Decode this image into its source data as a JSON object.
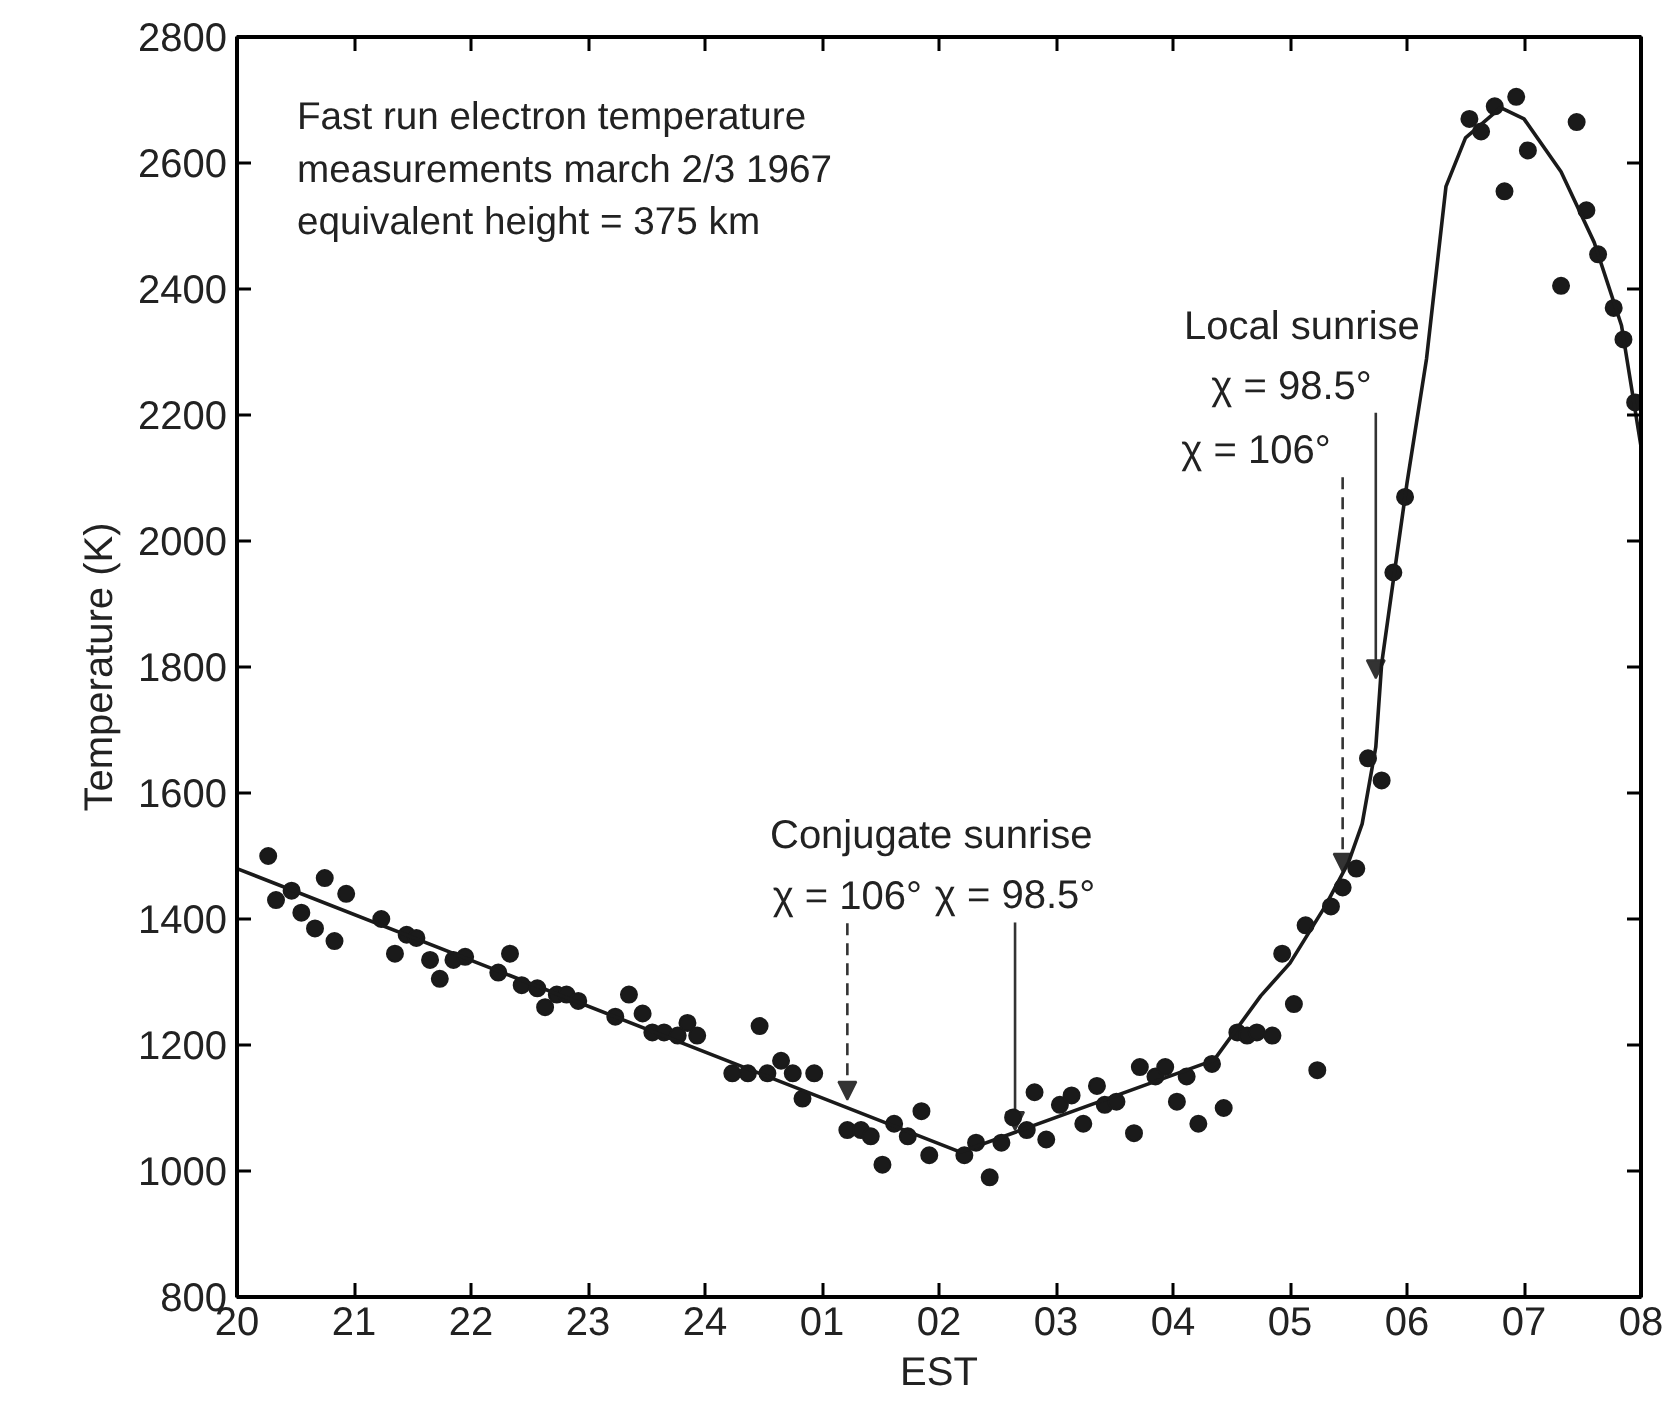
{
  "chart_data": {
    "type": "scatter",
    "title": "Fast run electron temperature\nmeasurements march 2/3 1967\nequivalent height = 375 km",
    "xlabel": "EST",
    "ylabel": "Temperature (K)",
    "xlim": [
      "1967-03-02T20:00",
      "1967-03-03T08:00"
    ],
    "ylim": [
      800,
      2800
    ],
    "xticks": [
      {
        "value": "1967-03-02T20:00",
        "label": "20"
      },
      {
        "value": "1967-03-02T21:00",
        "label": "21"
      },
      {
        "value": "1967-03-02T22:00",
        "label": "22"
      },
      {
        "value": "1967-03-02T23:00",
        "label": "23"
      },
      {
        "value": "1967-03-03T00:00",
        "label": "24"
      },
      {
        "value": "1967-03-03T01:00",
        "label": "01"
      },
      {
        "value": "1967-03-03T02:00",
        "label": "02"
      },
      {
        "value": "1967-03-03T03:00",
        "label": "03"
      },
      {
        "value": "1967-03-03T04:00",
        "label": "04"
      },
      {
        "value": "1967-03-03T05:00",
        "label": "05"
      },
      {
        "value": "1967-03-03T06:00",
        "label": "06"
      },
      {
        "value": "1967-03-03T07:00",
        "label": "07"
      },
      {
        "value": "1967-03-03T08:00",
        "label": "08"
      }
    ],
    "yticks": [
      800,
      1000,
      1200,
      1400,
      1600,
      1800,
      2000,
      2200,
      2400,
      2600,
      2800
    ],
    "series": [
      {
        "marker": "circle",
        "color": "#1a1a1a",
        "x": [
          "1967-03-02T20:16",
          "1967-03-02T20:20",
          "1967-03-02T20:28",
          "1967-03-02T20:33",
          "1967-03-02T20:40",
          "1967-03-02T20:45",
          "1967-03-02T20:50",
          "1967-03-02T20:56",
          "1967-03-02T21:14",
          "1967-03-02T21:21",
          "1967-03-02T21:27",
          "1967-03-02T21:32",
          "1967-03-02T21:39",
          "1967-03-02T21:44",
          "1967-03-02T21:51",
          "1967-03-02T21:57",
          "1967-03-02T22:14",
          "1967-03-02T22:20",
          "1967-03-02T22:26",
          "1967-03-02T22:34",
          "1967-03-02T22:38",
          "1967-03-02T22:44",
          "1967-03-02T22:49",
          "1967-03-02T22:55",
          "1967-03-02T23:14",
          "1967-03-02T23:21",
          "1967-03-02T23:28",
          "1967-03-02T23:33",
          "1967-03-02T23:39",
          "1967-03-02T23:46",
          "1967-03-02T23:51",
          "1967-03-02T23:56",
          "1967-03-03T00:14",
          "1967-03-03T00:22",
          "1967-03-03T00:28",
          "1967-03-03T00:32",
          "1967-03-03T00:39",
          "1967-03-03T00:45",
          "1967-03-03T00:50",
          "1967-03-03T00:56",
          "1967-03-03T01:13",
          "1967-03-03T01:20",
          "1967-03-03T01:25",
          "1967-03-03T01:31",
          "1967-03-03T01:37",
          "1967-03-03T01:44",
          "1967-03-03T01:51",
          "1967-03-03T01:55",
          "1967-03-03T02:13",
          "1967-03-03T02:19",
          "1967-03-03T02:26",
          "1967-03-03T02:32",
          "1967-03-03T02:38",
          "1967-03-03T02:45",
          "1967-03-03T02:49",
          "1967-03-03T02:55",
          "1967-03-03T03:02",
          "1967-03-03T03:08",
          "1967-03-03T03:14",
          "1967-03-03T03:21",
          "1967-03-03T03:25",
          "1967-03-03T03:31",
          "1967-03-03T03:40",
          "1967-03-03T03:43",
          "1967-03-03T03:51",
          "1967-03-03T03:56",
          "1967-03-03T04:02",
          "1967-03-03T04:07",
          "1967-03-03T04:13",
          "1967-03-03T04:20",
          "1967-03-03T04:26",
          "1967-03-03T04:33",
          "1967-03-03T04:38",
          "1967-03-03T04:43",
          "1967-03-03T04:51",
          "1967-03-03T04:56",
          "1967-03-03T05:02",
          "1967-03-03T05:08",
          "1967-03-03T05:14",
          "1967-03-03T05:21",
          "1967-03-03T05:27",
          "1967-03-03T05:34",
          "1967-03-03T05:40",
          "1967-03-03T05:47",
          "1967-03-03T05:53",
          "1967-03-03T05:59",
          "1967-03-03T06:32",
          "1967-03-03T06:38",
          "1967-03-03T06:45",
          "1967-03-03T06:50",
          "1967-03-03T06:56",
          "1967-03-03T07:02",
          "1967-03-03T07:19",
          "1967-03-03T07:27",
          "1967-03-03T07:32",
          "1967-03-03T07:38",
          "1967-03-03T07:46",
          "1967-03-03T07:51",
          "1967-03-03T07:57"
        ],
        "values": [
          1500,
          1430,
          1445,
          1410,
          1385,
          1465,
          1365,
          1440,
          1400,
          1345,
          1375,
          1370,
          1335,
          1305,
          1335,
          1340,
          1315,
          1345,
          1295,
          1290,
          1260,
          1280,
          1280,
          1270,
          1245,
          1280,
          1250,
          1220,
          1220,
          1215,
          1235,
          1215,
          1155,
          1155,
          1230,
          1155,
          1175,
          1155,
          1115,
          1155,
          1065,
          1065,
          1055,
          1010,
          1075,
          1055,
          1095,
          1025,
          1025,
          1045,
          990,
          1045,
          1085,
          1065,
          1125,
          1050,
          1105,
          1120,
          1075,
          1135,
          1105,
          1110,
          1060,
          1165,
          1150,
          1165,
          1110,
          1150,
          1075,
          1170,
          1100,
          1220,
          1215,
          1220,
          1215,
          1345,
          1265,
          1390,
          1160,
          1420,
          1450,
          1480,
          1655,
          1620,
          1950,
          2070,
          2670,
          2650,
          2690,
          2555,
          2705,
          2620,
          2405,
          2665,
          2525,
          2455,
          2370,
          2320,
          2220
        ]
      },
      {
        "type": "line",
        "marker": "none",
        "color": "#1a1a1a",
        "x": [
          "1967-03-02T20:00",
          "1967-03-03T02:11",
          "1967-03-03T04:21",
          "1967-03-03T04:45",
          "1967-03-03T05:00",
          "1967-03-03T05:18",
          "1967-03-03T05:30",
          "1967-03-03T05:37",
          "1967-03-03T05:44",
          "1967-03-03T05:47",
          "1967-03-03T05:54",
          "1967-03-03T06:00",
          "1967-03-03T06:10",
          "1967-03-03T06:20",
          "1967-03-03T06:30",
          "1967-03-03T06:48",
          "1967-03-03T07:00",
          "1967-03-03T07:19",
          "1967-03-03T07:36",
          "1967-03-03T07:50",
          "1967-03-03T08:00"
        ],
        "values": [
          1480,
          1030,
          1176,
          1278,
          1330,
          1420,
          1490,
          1551,
          1673,
          1805,
          1960,
          2092,
          2289,
          2563,
          2640,
          2688,
          2670,
          2586,
          2474,
          2342,
          2150
        ]
      }
    ],
    "annotations": [
      "Conjugate sunrise",
      "Local sunrise",
      {
        "text": "χ = 106°",
        "x": "1967-03-03T01:13",
        "y": 1113
      },
      {
        "text": "χ = 98.5°",
        "x": "1967-03-03T02:39",
        "y": 1065
      },
      {
        "text": "χ = 98.5°",
        "x": "1967-03-03T05:44",
        "y": 1782
      },
      {
        "text": "χ = 106°",
        "x": "1967-03-03T05:27",
        "y": 1475
      }
    ]
  }
}
